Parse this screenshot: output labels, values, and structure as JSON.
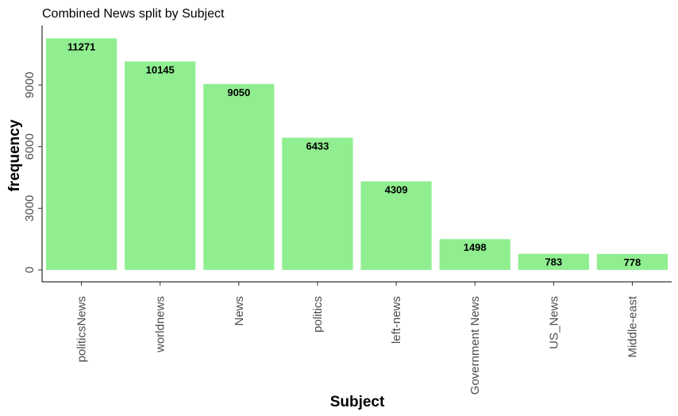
{
  "chart_data": {
    "type": "bar",
    "title": "Combined News split by Subject",
    "xlabel": "Subject",
    "ylabel": "frequency",
    "categories": [
      "politicsNews",
      "worldnews",
      "News",
      "politics",
      "left-news",
      "Government News",
      "US_News",
      "Middle-east"
    ],
    "values": [
      11271,
      10145,
      9050,
      6433,
      4309,
      1498,
      783,
      778
    ],
    "ylim": [
      0,
      11900
    ],
    "yticks": [
      0,
      3000,
      6000,
      9000
    ],
    "ytick_labels": [
      "0",
      "3000",
      "6000",
      "9000"
    ],
    "grid": false,
    "legend": "none",
    "bar_color": "#90ee90"
  }
}
